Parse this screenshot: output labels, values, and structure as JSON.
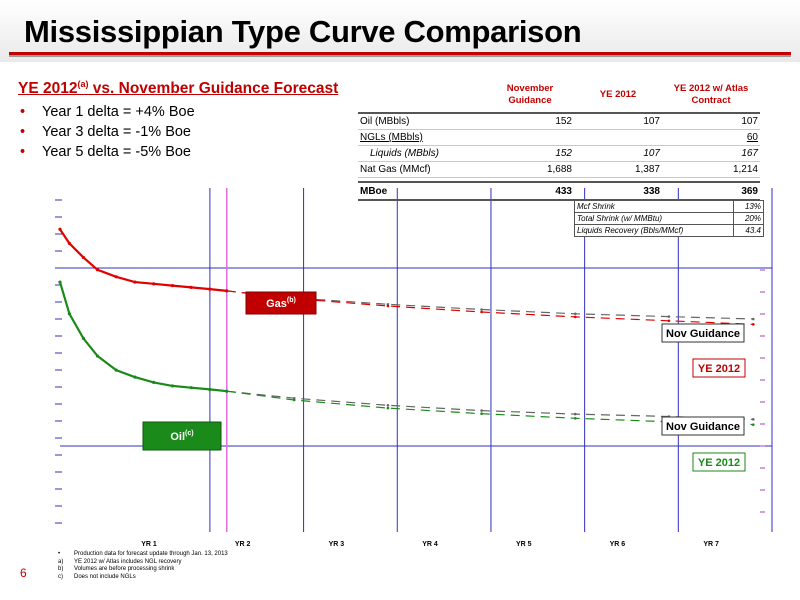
{
  "title": "Mississippian Type Curve Comparison",
  "subtitle": {
    "prefix": "YE 2012",
    "superscript": "(a)",
    "suffix": " vs. November Guidance Forecast"
  },
  "bullets": [
    "Year 1 delta = +4% Boe",
    "Year 3 delta = -1% Boe",
    "Year 5 delta = -5% Boe"
  ],
  "comparison_table": {
    "headers": [
      "",
      "November Guidance",
      "YE 2012",
      "YE 2012 w/ Atlas Contract"
    ],
    "rows": [
      [
        "Oil (MBbls)",
        "152",
        "107",
        "107"
      ],
      [
        "NGLs (MBbls)",
        "",
        "",
        "60"
      ],
      [
        "Liquids (MBbls)",
        "152",
        "107",
        "167"
      ],
      [
        "Nat Gas (MMcf)",
        "1,688",
        "1,387",
        "1,214"
      ]
    ],
    "total": [
      "MBoe",
      "433",
      "338",
      "369"
    ]
  },
  "shrink_table": [
    [
      "Mcf Shrink",
      "13%"
    ],
    [
      "Total Shrink (w/ MMBtu)",
      "20%"
    ],
    [
      "Liquids Recovery (Bbls/MMcf)",
      "43.4"
    ]
  ],
  "chart_data": {
    "type": "line",
    "title": "",
    "xlabel": "",
    "ylabel": "",
    "x_ticks": [
      "YR 1",
      "YR 2",
      "YR 3",
      "YR 4",
      "YR 5",
      "YR 6",
      "YR 7"
    ],
    "xlim": [
      0,
      7.6
    ],
    "ylim": [
      0,
      1
    ],
    "y_scale": "log (tick labels illegible)",
    "grid": "vertical year lines",
    "series": [
      {
        "name": "Gas",
        "name_superscript": "(b)",
        "color": "#e00000",
        "style": "actual",
        "x": [
          0.0,
          0.1,
          0.25,
          0.4,
          0.6,
          0.8,
          1.0,
          1.2,
          1.4,
          1.6,
          1.78
        ],
        "y": [
          0.86,
          0.82,
          0.78,
          0.745,
          0.725,
          0.71,
          0.705,
          0.7,
          0.695,
          0.69,
          0.685
        ]
      },
      {
        "name": "Nov Guidance",
        "color": "#666666",
        "style": "dashed",
        "x": [
          1.78,
          2.5,
          3.5,
          4.5,
          5.5,
          6.5,
          7.4
        ],
        "y": [
          0.685,
          0.665,
          0.647,
          0.632,
          0.62,
          0.612,
          0.605
        ]
      },
      {
        "name": "YE 2012",
        "color": "#e00000",
        "style": "dashed",
        "x": [
          1.78,
          2.5,
          3.5,
          4.5,
          5.5,
          6.5,
          7.4
        ],
        "y": [
          0.685,
          0.663,
          0.642,
          0.625,
          0.611,
          0.6,
          0.59
        ]
      },
      {
        "name": "Oil",
        "name_superscript": "(c)",
        "color": "#1a8a1a",
        "style": "actual",
        "x": [
          0.0,
          0.1,
          0.25,
          0.4,
          0.6,
          0.8,
          1.0,
          1.2,
          1.4,
          1.6,
          1.78
        ],
        "y": [
          0.71,
          0.62,
          0.55,
          0.5,
          0.46,
          0.44,
          0.425,
          0.415,
          0.41,
          0.405,
          0.4
        ]
      },
      {
        "name": "Nov Guidance",
        "color": "#666666",
        "style": "dashed",
        "x": [
          1.78,
          2.5,
          3.5,
          4.5,
          5.5,
          6.5,
          7.4
        ],
        "y": [
          0.4,
          0.38,
          0.36,
          0.345,
          0.335,
          0.328,
          0.32
        ]
      },
      {
        "name": "YE 2012",
        "color": "#1a8a1a",
        "style": "dashed",
        "x": [
          1.78,
          2.5,
          3.5,
          4.5,
          5.5,
          6.5,
          7.4
        ],
        "y": [
          0.4,
          0.375,
          0.352,
          0.336,
          0.323,
          0.313,
          0.305
        ]
      }
    ],
    "labels": [
      {
        "text": "Gas",
        "sup": "(b)",
        "style": "red-box"
      },
      {
        "text": "Oil",
        "sup": "(c)",
        "style": "green-box"
      },
      {
        "text": "Nov Guidance",
        "style": "grey-box"
      },
      {
        "text": "YE 2012",
        "style": "red-outline"
      },
      {
        "text": "Nov Guidance",
        "style": "grey-box"
      },
      {
        "text": "YE 2012",
        "style": "green-outline"
      }
    ]
  },
  "footnotes": [
    {
      "marker": "•",
      "text": "Production data for forecast update through Jan. 13, 2013"
    },
    {
      "marker": "a)",
      "text": "YE 2012  w/ Atlas includes NGL recovery"
    },
    {
      "marker": "b)",
      "text": "Volumes are before processing shrink"
    },
    {
      "marker": "c)",
      "text": "Does not include NGLs"
    }
  ],
  "page_number": "6",
  "colors": {
    "accent_red": "#c00000",
    "grid_blue": "#3030c0",
    "magenta_line": "#e070e0"
  }
}
